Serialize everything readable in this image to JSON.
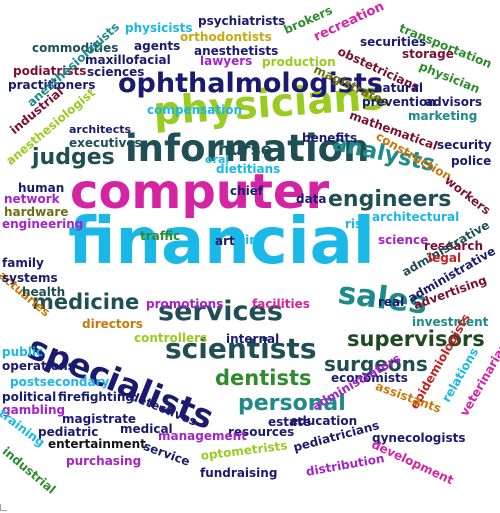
{
  "palette": {
    "navy": "#1a1a6e",
    "dark_teal": "#1f4e55",
    "sky": "#19b8e6",
    "lime": "#9acb1f",
    "purple": "#a424c8",
    "magenta": "#d423a3",
    "olive": "#6e6f12",
    "maroon": "#7a1030",
    "teal": "#1e8a8a",
    "orange": "#c8790b",
    "red": "#c22222",
    "green": "#2e8b2e",
    "dark_green": "#1f4a1f",
    "gold": "#c8a814",
    "black": "#141414"
  },
  "words": [
    {
      "text": "financial",
      "color": "sky"
    },
    {
      "text": "computer",
      "color": "magenta"
    },
    {
      "text": "information",
      "color": "dark_teal"
    },
    {
      "text": "physicians",
      "color": "lime"
    },
    {
      "text": "specialists",
      "color": "navy"
    },
    {
      "text": "services",
      "color": "dark_teal"
    },
    {
      "text": "scientists",
      "color": "dark_teal"
    },
    {
      "text": "ophthalmologists",
      "color": "navy"
    },
    {
      "text": "sales",
      "color": "teal"
    },
    {
      "text": "engineers",
      "color": "dark_teal"
    },
    {
      "text": "medicine",
      "color": "dark_teal"
    },
    {
      "text": "analysts",
      "color": "teal"
    },
    {
      "text": "judges",
      "color": "dark_teal"
    },
    {
      "text": "supervisors",
      "color": "dark_green"
    },
    {
      "text": "surgeons",
      "color": "dark_teal"
    },
    {
      "text": "dentists",
      "color": "green"
    },
    {
      "text": "personal",
      "color": "teal"
    },
    {
      "text": "nurse",
      "color": "dark_teal"
    },
    {
      "text": "commodities",
      "color": "dark_teal"
    },
    {
      "text": "physicists",
      "color": "sky"
    },
    {
      "text": "psychiatrists",
      "color": "navy"
    },
    {
      "text": "brokers",
      "color": "green"
    },
    {
      "text": "orthodontists",
      "color": "gold"
    },
    {
      "text": "agents",
      "color": "navy"
    },
    {
      "text": "anesthetists",
      "color": "navy"
    },
    {
      "text": "maxillofacial",
      "color": "navy"
    },
    {
      "text": "lawyers",
      "color": "purple"
    },
    {
      "text": "production",
      "color": "lime"
    },
    {
      "text": "recreation",
      "color": "magenta"
    },
    {
      "text": "securities",
      "color": "navy"
    },
    {
      "text": "transportation",
      "color": "green"
    },
    {
      "text": "storage",
      "color": "maroon"
    },
    {
      "text": "podiatrists",
      "color": "maroon"
    },
    {
      "text": "sciences",
      "color": "navy"
    },
    {
      "text": "practitioners",
      "color": "navy"
    },
    {
      "text": "obstetricians",
      "color": "maroon"
    },
    {
      "text": "physician",
      "color": "green"
    },
    {
      "text": "magistrates",
      "color": "olive"
    },
    {
      "text": "anesthesiologists",
      "color": "teal"
    },
    {
      "text": "natural",
      "color": "navy"
    },
    {
      "text": "prevention",
      "color": "navy"
    },
    {
      "text": "advisors",
      "color": "navy"
    },
    {
      "text": "compensation",
      "color": "sky"
    },
    {
      "text": "mathematical",
      "color": "maroon"
    },
    {
      "text": "marketing",
      "color": "teal"
    },
    {
      "text": "industrial",
      "color": "maroon"
    },
    {
      "text": "anesthesiologist",
      "color": "lime"
    },
    {
      "text": "architects",
      "color": "navy"
    },
    {
      "text": "executives",
      "color": "dark_teal"
    },
    {
      "text": "benefits",
      "color": "navy"
    },
    {
      "text": "construction",
      "color": "orange"
    },
    {
      "text": "security",
      "color": "navy"
    },
    {
      "text": "police",
      "color": "navy"
    },
    {
      "text": "oral",
      "color": "sky"
    },
    {
      "text": "dietitians",
      "color": "sky"
    },
    {
      "text": "chief",
      "color": "navy"
    },
    {
      "text": "workers",
      "color": "maroon"
    },
    {
      "text": "human",
      "color": "navy"
    },
    {
      "text": "network",
      "color": "purple"
    },
    {
      "text": "hardware",
      "color": "olive"
    },
    {
      "text": "engineering",
      "color": "purple"
    },
    {
      "text": "data",
      "color": "navy"
    },
    {
      "text": "risk",
      "color": "sky"
    },
    {
      "text": "architectural",
      "color": "sky"
    },
    {
      "text": "traffic",
      "color": "green"
    },
    {
      "text": "art",
      "color": "navy"
    },
    {
      "text": "air",
      "color": "sky"
    },
    {
      "text": "science",
      "color": "purple"
    },
    {
      "text": "research",
      "color": "maroon"
    },
    {
      "text": "administrative",
      "color": "dark_teal"
    },
    {
      "text": "family",
      "color": "navy"
    },
    {
      "text": "actuaries",
      "color": "orange"
    },
    {
      "text": "legal",
      "color": "red"
    },
    {
      "text": "systems",
      "color": "navy"
    },
    {
      "text": "health",
      "color": "dark_teal"
    },
    {
      "text": "administrative",
      "color": "navy"
    },
    {
      "text": "advertising",
      "color": "maroon"
    },
    {
      "text": "real",
      "color": "navy"
    },
    {
      "text": "promotions",
      "color": "purple"
    },
    {
      "text": "facilities",
      "color": "magenta"
    },
    {
      "text": "investment",
      "color": "teal"
    },
    {
      "text": "directors",
      "color": "orange"
    },
    {
      "text": "public",
      "color": "sky"
    },
    {
      "text": "controllers",
      "color": "lime"
    },
    {
      "text": "internal",
      "color": "navy"
    },
    {
      "text": "operations",
      "color": "navy"
    },
    {
      "text": "postsecondary",
      "color": "sky"
    },
    {
      "text": "economists",
      "color": "navy"
    },
    {
      "text": "political",
      "color": "navy"
    },
    {
      "text": "firefighting",
      "color": "navy"
    },
    {
      "text": "gambling",
      "color": "purple"
    },
    {
      "text": "magistrate",
      "color": "navy"
    },
    {
      "text": "detectives",
      "color": "navy"
    },
    {
      "text": "epidemiologists",
      "color": "red"
    },
    {
      "text": "relations",
      "color": "sky"
    },
    {
      "text": "veterinarians",
      "color": "magenta"
    },
    {
      "text": "assistants",
      "color": "orange"
    },
    {
      "text": "administrators",
      "color": "purple"
    },
    {
      "text": "education",
      "color": "navy"
    },
    {
      "text": "training",
      "color": "sky"
    },
    {
      "text": "pediatric",
      "color": "navy"
    },
    {
      "text": "medical",
      "color": "navy"
    },
    {
      "text": "resources",
      "color": "navy"
    },
    {
      "text": "gynecologists",
      "color": "navy"
    },
    {
      "text": "entertainment",
      "color": "black"
    },
    {
      "text": "management",
      "color": "purple"
    },
    {
      "text": "optometrists",
      "color": "lime"
    },
    {
      "text": "pediatricians",
      "color": "navy"
    },
    {
      "text": "development",
      "color": "magenta"
    },
    {
      "text": "industrial",
      "color": "green"
    },
    {
      "text": "purchasing",
      "color": "purple"
    },
    {
      "text": "service",
      "color": "navy"
    },
    {
      "text": "fundraising",
      "color": "navy"
    },
    {
      "text": "distribution",
      "color": "purple"
    },
    {
      "text": "estate",
      "color": "navy"
    }
  ]
}
